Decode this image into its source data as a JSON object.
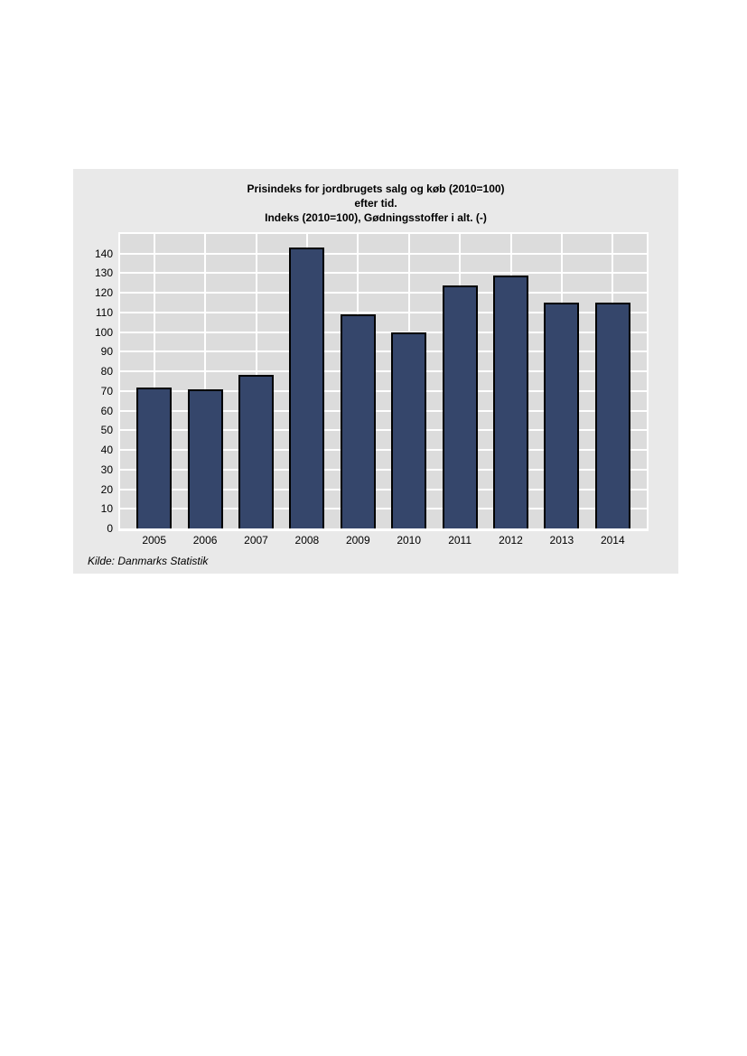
{
  "page": {
    "background_color": "#ffffff"
  },
  "chart": {
    "title_line1": "Prisindeks for jordbrugets salg og køb (2010=100)",
    "title_line2": "efter tid.",
    "title_line3": "Indeks (2010=100), Gødningsstoffer i alt. (-)",
    "source": "Kilde: Danmarks Statistik"
  },
  "chart_data": {
    "type": "bar",
    "title": "Prisindeks for jordbrugets salg og køb (2010=100) efter tid.",
    "subtitle": "Indeks (2010=100), Gødningsstoffer i alt. (-)",
    "categories": [
      "2005",
      "2006",
      "2007",
      "2008",
      "2009",
      "2010",
      "2011",
      "2012",
      "2013",
      "2014"
    ],
    "values": [
      72,
      71,
      78,
      143,
      109,
      100,
      124,
      129,
      115,
      115
    ],
    "series_name": "Gødningsstoffer i alt.",
    "xlabel": "",
    "ylabel": "",
    "ylim": [
      0,
      150
    ],
    "yticks": [
      0,
      10,
      20,
      30,
      40,
      50,
      60,
      70,
      80,
      90,
      100,
      110,
      120,
      130,
      140
    ],
    "grid": true,
    "legend_position": "none",
    "colors": {
      "bar_fill": "#35466b",
      "bar_border": "#000000",
      "plot_background": "#dcdcdc",
      "chart_background": "#e9e9e9",
      "gridline": "#ffffff",
      "text": "#000000"
    }
  }
}
